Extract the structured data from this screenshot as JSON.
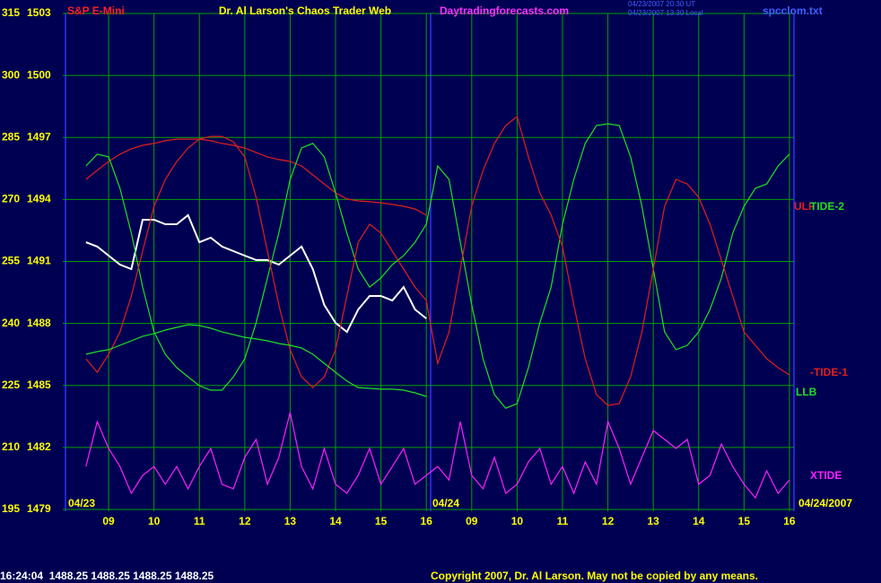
{
  "chart_data": {
    "type": "line",
    "title": "Dr. Al Larson's Chaos Trader Web",
    "header_left": "S&P E-Mini",
    "header_site": "Daytradingforecasts.com",
    "header_time_ut": "04/23/2007 20:30 UT",
    "header_time_local": "04/23/2007 13:30 Local",
    "header_file": "spcclom.txt",
    "footer_quote": "16:24:04  1488.25 1488.25 1488.25 1488.25",
    "footer_copyright": "Copyright 2007, Dr. Al Larson. May not be copied by any means.",
    "annotations": [
      "04/23",
      "04/24",
      "04/24/2007"
    ],
    "grid": true,
    "xlim": [
      8.05,
      24.1
    ],
    "ylim": [
      1479,
      1503
    ],
    "y2lim": [
      195,
      315
    ],
    "xticks": [
      {
        "value": 9,
        "label": "09"
      },
      10,
      11,
      12,
      13,
      14,
      15,
      16,
      {
        "value": 17,
        "label": "09"
      },
      {
        "value": 18,
        "label": "10"
      },
      {
        "value": 19,
        "label": "11"
      },
      {
        "value": 20,
        "label": "12"
      },
      {
        "value": 21,
        "label": "13"
      },
      {
        "value": 22,
        "label": "14"
      },
      {
        "value": 23,
        "label": "15"
      },
      {
        "value": 24,
        "label": "16"
      }
    ],
    "yticks": [
      1479,
      1482,
      1485,
      1488,
      1491,
      1494,
      1497,
      1500,
      1503
    ],
    "y2ticks": [
      195,
      210,
      225,
      240,
      255,
      270,
      285,
      300,
      315
    ],
    "x": [
      8.5,
      8.75,
      9,
      9.25,
      9.5,
      9.75,
      10,
      10.25,
      10.5,
      10.75,
      11,
      11.25,
      11.5,
      11.75,
      12,
      12.25,
      12.5,
      12.75,
      13,
      13.25,
      13.5,
      13.75,
      14,
      14.25,
      14.5,
      14.75,
      15,
      15.25,
      15.5,
      15.75,
      16,
      16.25,
      16.5,
      16.75,
      17,
      17.25,
      17.5,
      17.75,
      18,
      18.25,
      18.5,
      18.75,
      19,
      19.25,
      19.5,
      19.75,
      20,
      20.25,
      20.5,
      20.75,
      21,
      21.25,
      21.5,
      21.75,
      22,
      22.25,
      22.5,
      22.75,
      23,
      23.25,
      23.5,
      23.75,
      24
    ],
    "series": [
      {
        "color": "#ffffff",
        "values": [
          1491.93,
          1491.72,
          1491.28,
          1490.85,
          1490.63,
          1493.02,
          1493.02,
          1492.8,
          1492.8,
          1493.24,
          1491.93,
          1492.15,
          1491.72,
          1491.5,
          1491.28,
          1491.07,
          1491.07,
          1490.85,
          1491.28,
          1491.72,
          1490.63,
          1488.9,
          1488.03,
          1487.59,
          1488.68,
          1489.33,
          1489.33,
          1489.11,
          1489.76,
          1488.68,
          1488.24,
          null,
          null,
          null,
          null,
          null,
          null,
          null,
          null,
          null,
          null,
          null,
          null,
          null,
          null,
          null,
          null,
          null,
          null,
          null,
          null,
          null,
          null,
          null,
          null,
          null,
          null,
          null,
          null,
          null,
          null,
          null,
          null
        ]
      },
      {
        "name": "ULF",
        "color": "#e0201c",
        "values": [
          1494.97,
          1495.41,
          1495.84,
          1496.19,
          1496.45,
          1496.62,
          1496.71,
          1496.84,
          1496.92,
          1496.92,
          1496.92,
          1496.84,
          1496.71,
          1496.62,
          1496.49,
          1496.27,
          1496.06,
          1495.93,
          1495.84,
          1495.62,
          1495.19,
          1494.75,
          1494.32,
          1494.02,
          1493.93,
          1493.89,
          1493.84,
          1493.76,
          1493.67,
          1493.54,
          1493.24,
          null,
          null,
          null,
          null,
          null,
          null,
          null,
          null,
          null,
          null,
          null,
          null,
          null,
          null,
          null,
          null,
          null,
          null,
          null,
          null,
          null,
          null,
          null,
          null,
          null,
          null,
          null,
          null,
          null,
          null,
          null,
          null
        ]
      },
      {
        "name": "TIDE-2",
        "color": "#20e020",
        "values": [
          1495.62,
          1496.19,
          1496.06,
          1494.54,
          1492.37,
          1489.76,
          1487.59,
          1486.51,
          1485.86,
          1485.42,
          1484.99,
          1484.77,
          1484.77,
          1485.42,
          1486.29,
          1488.03,
          1490.2,
          1492.37,
          1494.97,
          1496.49,
          1496.71,
          1496.06,
          1494.32,
          1492.37,
          1490.63,
          1489.76,
          1490.2,
          1490.85,
          1491.28,
          1491.93,
          1492.8,
          1495.62,
          1494.97,
          1491.93,
          1488.9,
          1486.29,
          1484.56,
          1483.9,
          1484.12,
          1485.86,
          1488.03,
          1489.76,
          1492.8,
          1494.97,
          1496.71,
          1497.58,
          1497.66,
          1497.58,
          1496.06,
          1493.67,
          1490.63,
          1487.59,
          1486.73,
          1486.94,
          1487.59,
          1488.68,
          1490.2,
          1492.37,
          1493.67,
          1494.54,
          1494.75,
          1495.62,
          1496.19
        ]
      },
      {
        "name": "-TIDE-1",
        "color": "#e0201c",
        "values": [
          1486.29,
          1485.64,
          1486.51,
          1487.59,
          1489.33,
          1491.5,
          1493.67,
          1494.97,
          1495.84,
          1496.49,
          1496.92,
          1497.05,
          1497.05,
          1496.79,
          1496.06,
          1494.1,
          1491.5,
          1488.9,
          1486.73,
          1485.42,
          1484.9,
          1485.42,
          1486.73,
          1489.33,
          1491.93,
          1492.8,
          1492.37,
          1491.5,
          1490.63,
          1489.76,
          1489.11,
          1486.07,
          1487.59,
          1490.63,
          1493.67,
          1495.41,
          1496.71,
          1497.58,
          1498.01,
          1496.06,
          1494.32,
          1493.24,
          1491.72,
          1488.9,
          1486.29,
          1484.56,
          1484.03,
          1484.12,
          1485.42,
          1487.59,
          1490.63,
          1493.67,
          1494.97,
          1494.75,
          1494.1,
          1492.8,
          1491.07,
          1489.33,
          1487.59,
          1486.94,
          1486.29,
          1485.86,
          1485.51
        ]
      },
      {
        "name": "LLB",
        "color": "#20e020",
        "values": [
          1486.51,
          1486.64,
          1486.73,
          1486.94,
          1487.16,
          1487.38,
          1487.51,
          1487.68,
          1487.81,
          1487.94,
          1487.9,
          1487.77,
          1487.59,
          1487.46,
          1487.33,
          1487.25,
          1487.16,
          1487.03,
          1486.94,
          1486.81,
          1486.51,
          1486.07,
          1485.64,
          1485.21,
          1484.9,
          1484.86,
          1484.82,
          1484.82,
          1484.77,
          1484.64,
          1484.47,
          null,
          null,
          null,
          null,
          null,
          null,
          null,
          null,
          null,
          null,
          null,
          null,
          null,
          null,
          null,
          null,
          null,
          null,
          null,
          null,
          null,
          null,
          null,
          null,
          null,
          null,
          null,
          null,
          null,
          null,
          null,
          null
        ]
      },
      {
        "name": "XTIDE",
        "color": "#ff20ff",
        "values": [
          1481.08,
          1483.25,
          1481.95,
          1481.08,
          1479.78,
          1480.65,
          1481.08,
          1480.22,
          1481.08,
          1480.0,
          1481.08,
          1481.95,
          1480.22,
          1480.0,
          1481.52,
          1482.39,
          1480.22,
          1481.52,
          1483.69,
          1481.08,
          1480.0,
          1481.95,
          1480.22,
          1479.78,
          1480.65,
          1481.95,
          1480.22,
          1481.08,
          1481.95,
          1480.22,
          1480.65,
          1481.08,
          1480.43,
          1483.25,
          1480.65,
          1480.0,
          1481.52,
          1479.78,
          1480.22,
          1481.3,
          1481.95,
          1480.22,
          1481.08,
          1479.78,
          1481.3,
          1480.22,
          1483.25,
          1481.95,
          1480.22,
          1481.52,
          1482.82,
          1482.39,
          1481.95,
          1482.39,
          1480.22,
          1480.65,
          1482.17,
          1481.08,
          1480.22,
          1479.56,
          1480.87,
          1479.78,
          1480.43
        ]
      }
    ]
  }
}
